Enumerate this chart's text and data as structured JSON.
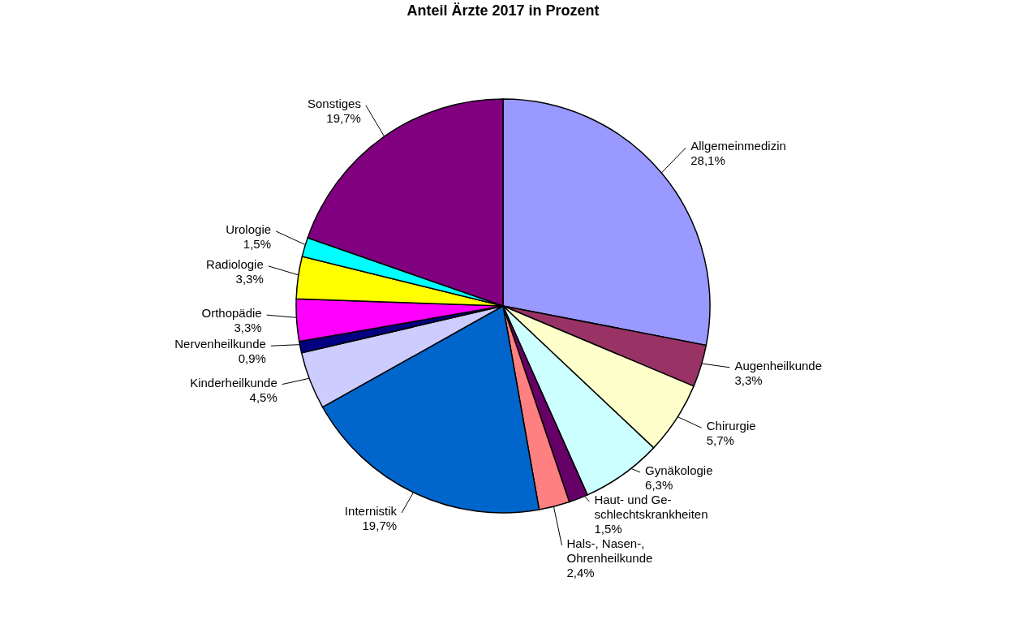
{
  "chart_data": {
    "type": "pie",
    "title": "Anteil Ärzte 2017 in Prozent",
    "categories": [
      "Allgemeinmedizin",
      "Augenheilkunde",
      "Chirurgie",
      "Gynäkologie",
      "Haut- und Ge-\nschlechtskrankheiten",
      "Hals-, Nasen-,\nOhrenheilkunde",
      "Internistik",
      "Kinderheilkunde",
      "Nervenheilkunde",
      "Orthopädie",
      "Radiologie",
      "Urologie",
      "Sonstiges"
    ],
    "values": [
      28.1,
      3.3,
      5.7,
      6.3,
      1.5,
      2.4,
      19.7,
      4.5,
      0.9,
      3.3,
      3.3,
      1.5,
      19.7
    ],
    "colors": [
      "#9999ff",
      "#993366",
      "#ffffcc",
      "#ccffff",
      "#660066",
      "#ff8080",
      "#0066cc",
      "#ccccff",
      "#000080",
      "#ff00ff",
      "#ffff00",
      "#00ffff",
      "#800080"
    ],
    "value_labels": [
      "28,1%",
      "3,3%",
      "5,7%",
      "6,3%",
      "1,5%",
      "2,4%",
      "19,7%",
      "4,5%",
      "0,9%",
      "3,3%",
      "3,3%",
      "1,5%",
      "19,7%"
    ],
    "legend": false
  }
}
